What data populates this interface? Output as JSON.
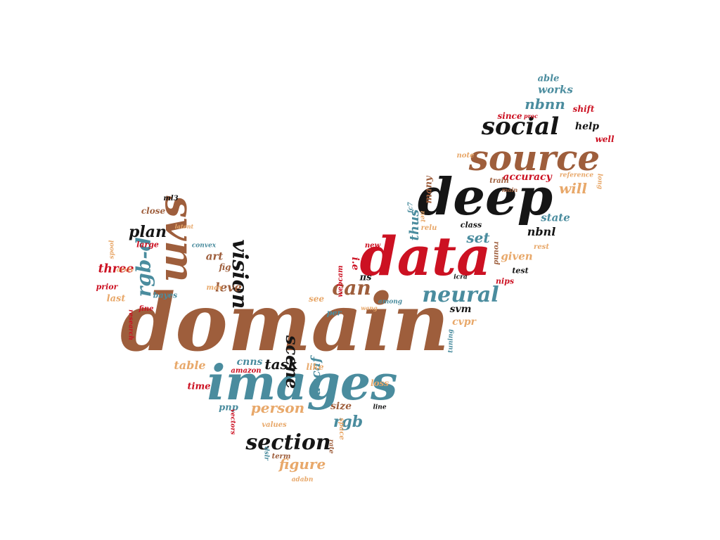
{
  "palette": {
    "brown": "#9E5E3C",
    "teal": "#4A8C9E",
    "red": "#CC1122",
    "black": "#151515",
    "tan": "#E8A86A",
    "background": "#FFFFFF"
  },
  "words": [
    {
      "text": "domain",
      "color": "brown"
    },
    {
      "text": "images",
      "color": "teal"
    },
    {
      "text": "data",
      "color": "red"
    },
    {
      "text": "deep",
      "color": "black"
    },
    {
      "text": "source",
      "color": "brown"
    },
    {
      "text": "svm",
      "color": "brown"
    },
    {
      "text": "social",
      "color": "black"
    },
    {
      "text": "neural",
      "color": "teal"
    },
    {
      "text": "section",
      "color": "black"
    },
    {
      "text": "vision",
      "color": "black"
    },
    {
      "text": "rgb-d",
      "color": "teal"
    },
    {
      "text": "scene",
      "color": "black"
    },
    {
      "text": "can",
      "color": "brown"
    },
    {
      "text": "person",
      "color": "tan"
    },
    {
      "text": "rgb",
      "color": "teal"
    },
    {
      "text": "task",
      "color": "black"
    },
    {
      "text": "figure",
      "color": "tan"
    },
    {
      "text": "plan",
      "color": "black"
    },
    {
      "text": "nbnn",
      "color": "teal"
    },
    {
      "text": "will",
      "color": "tan"
    },
    {
      "text": "set",
      "color": "teal"
    },
    {
      "text": "state",
      "color": "teal"
    },
    {
      "text": "works",
      "color": "teal"
    },
    {
      "text": "leve",
      "color": "brown"
    },
    {
      "text": "three",
      "color": "red"
    },
    {
      "text": "table",
      "color": "tan"
    },
    {
      "text": "given",
      "color": "tan"
    },
    {
      "text": "accuracy",
      "color": "red"
    },
    {
      "text": "thus",
      "color": "teal"
    },
    {
      "text": "decaf",
      "color": "teal"
    },
    {
      "text": "svm",
      "color": "black"
    },
    {
      "text": "cvpr",
      "color": "tan"
    },
    {
      "text": "nbnl",
      "color": "black"
    },
    {
      "text": "art",
      "color": "brown"
    },
    {
      "text": "help",
      "color": "black"
    },
    {
      "text": "able",
      "color": "teal"
    },
    {
      "text": "since",
      "color": "red"
    },
    {
      "text": "shift",
      "color": "red"
    },
    {
      "text": "well",
      "color": "red"
    },
    {
      "text": "many",
      "color": "brown"
    },
    {
      "text": "train",
      "color": "brown"
    },
    {
      "text": "note",
      "color": "tan"
    },
    {
      "text": "reference",
      "color": "tan"
    },
    {
      "text": "long",
      "color": "tan"
    },
    {
      "text": "main",
      "color": "brown"
    },
    {
      "text": "proc",
      "color": "red"
    },
    {
      "text": "class",
      "color": "black"
    },
    {
      "text": "relu",
      "color": "tan"
    },
    {
      "text": "test",
      "color": "black"
    },
    {
      "text": "rest",
      "color": "tan"
    },
    {
      "text": "round",
      "color": "brown"
    },
    {
      "text": "nips",
      "color": "red"
    },
    {
      "text": "i.e",
      "color": "red"
    },
    {
      "text": "πs",
      "color": "black"
    },
    {
      "text": "new",
      "color": "red"
    },
    {
      "text": "icra",
      "color": "black"
    },
    {
      "text": "see",
      "color": "tan"
    },
    {
      "text": "among",
      "color": "teal"
    },
    {
      "text": "per",
      "color": "teal"
    },
    {
      "text": "wang",
      "color": "tan"
    },
    {
      "text": "tuning",
      "color": "teal"
    },
    {
      "text": "cnns",
      "color": "teal"
    },
    {
      "text": "like",
      "color": "tan"
    },
    {
      "text": "amazon",
      "color": "red"
    },
    {
      "text": "loss",
      "color": "tan"
    },
    {
      "text": "size",
      "color": "brown"
    },
    {
      "text": "line",
      "color": "black"
    },
    {
      "text": "space",
      "color": "tan"
    },
    {
      "text": "term",
      "color": "brown"
    },
    {
      "text": "values",
      "color": "tan"
    },
    {
      "text": "dslr",
      "color": "teal"
    },
    {
      "text": "adabn",
      "color": "tan"
    },
    {
      "text": "time",
      "color": "red"
    },
    {
      "text": "pnp",
      "color": "teal"
    },
    {
      "text": "max",
      "color": "tan"
    },
    {
      "text": "bayes",
      "color": "teal"
    },
    {
      "text": "fine",
      "color": "red"
    },
    {
      "text": "research",
      "color": "red"
    },
    {
      "text": "last",
      "color": "tan"
    },
    {
      "text": "prior",
      "color": "red"
    },
    {
      "text": "arxiv",
      "color": "tan"
    },
    {
      "text": "large",
      "color": "red"
    },
    {
      "text": "close",
      "color": "brown"
    },
    {
      "text": "ml3",
      "color": "black"
    },
    {
      "text": "latent",
      "color": "tan"
    },
    {
      "text": "convex",
      "color": "teal"
    },
    {
      "text": "fig",
      "color": "brown"
    },
    {
      "text": "spool",
      "color": "tan"
    },
    {
      "text": "vectors",
      "color": "red"
    },
    {
      "text": "webcam",
      "color": "red"
    },
    {
      "text": "rate",
      "color": "brown"
    },
    {
      "text": "fc7",
      "color": "teal"
    },
    {
      "text": "net",
      "color": "tan"
    }
  ]
}
